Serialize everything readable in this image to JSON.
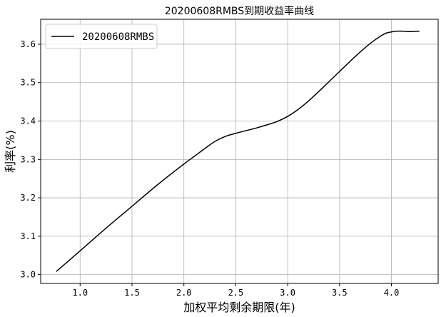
{
  "chart_data": {
    "type": "line",
    "title": "20200608RMBS到期收益率曲线",
    "xlabel": "加权平均剩余期限(年)",
    "ylabel": "利率(%)",
    "xlim": [
      0.62,
      4.45
    ],
    "ylim": [
      2.977,
      3.665
    ],
    "xticks": [
      1.0,
      1.5,
      2.0,
      2.5,
      3.0,
      3.5,
      4.0
    ],
    "xtick_labels": [
      "1.0",
      "1.5",
      "2.0",
      "2.5",
      "3.0",
      "3.5",
      "4.0"
    ],
    "yticks": [
      3.0,
      3.1,
      3.2,
      3.3,
      3.4,
      3.5,
      3.6
    ],
    "ytick_labels": [
      "3.0",
      "3.1",
      "3.2",
      "3.3",
      "3.4",
      "3.5",
      "3.6"
    ],
    "grid": true,
    "legend_position": "top-left",
    "series": [
      {
        "name": "20200608RMBS",
        "color": "#000000",
        "x": [
          0.77,
          1.0,
          1.25,
          1.5,
          1.75,
          2.0,
          2.1,
          2.2,
          2.3,
          2.4,
          2.5,
          2.6,
          2.7,
          2.8,
          2.9,
          3.0,
          3.1,
          3.2,
          3.3,
          3.4,
          3.5,
          3.6,
          3.7,
          3.8,
          3.9,
          3.95,
          4.0,
          4.05,
          4.1,
          4.15,
          4.2,
          4.27
        ],
        "y": [
          3.008,
          3.062,
          3.121,
          3.178,
          3.235,
          3.288,
          3.308,
          3.328,
          3.347,
          3.36,
          3.368,
          3.375,
          3.382,
          3.39,
          3.399,
          3.412,
          3.43,
          3.452,
          3.477,
          3.503,
          3.529,
          3.555,
          3.58,
          3.603,
          3.622,
          3.629,
          3.632,
          3.634,
          3.634,
          3.633,
          3.633,
          3.634
        ]
      }
    ]
  }
}
